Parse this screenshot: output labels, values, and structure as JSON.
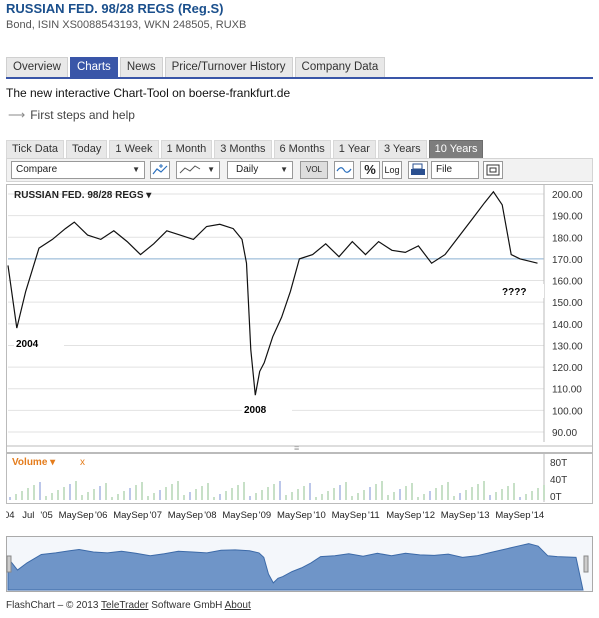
{
  "header": {
    "title": "RUSSIAN FED. 98/28 REGS (Reg.S)",
    "subtitle": "Bond, ISIN XS0088543193, WKN 248505, RUXB"
  },
  "nav_tabs": [
    "Overview",
    "Charts",
    "News",
    "Price/Turnover History",
    "Company Data"
  ],
  "intro_text": "The new interactive Chart-Tool on boerse-frankfurt.de",
  "help_link": "First steps and help",
  "range_tabs": [
    "Tick Data",
    "Today",
    "1 Week",
    "1 Month",
    "3 Months",
    "6 Months",
    "1 Year",
    "3 Years",
    "10 Years"
  ],
  "toolbar": {
    "compare_label": "Compare",
    "interval_label": "Daily",
    "vol_label": "VOL",
    "percent_label": "%",
    "log_label": "Log",
    "file_label": "File"
  },
  "chart_data": {
    "type": "line",
    "title": "RUSSIAN FED. 98/28 REGS",
    "ylim": [
      90,
      200
    ],
    "y_ticks": [
      "200.00",
      "190.00",
      "180.00",
      "170.00",
      "160.00",
      "150.00",
      "140.00",
      "130.00",
      "120.00",
      "110.00",
      "100.00",
      "90.00"
    ],
    "x_ticks": [
      "04",
      "Jul",
      "'05",
      "May",
      "Sep",
      "'06",
      "May",
      "Sep",
      "'07",
      "May",
      "Sep",
      "'08",
      "May",
      "Sep",
      "'09",
      "May",
      "Sep",
      "'10",
      "May",
      "Sep",
      "'11",
      "May",
      "Sep",
      "'12",
      "May",
      "Sep",
      "'13",
      "May",
      "Sep",
      "'14"
    ],
    "annotations": [
      "2004",
      "2008",
      "????"
    ],
    "reference_line": 170,
    "series": [
      {
        "x": [
          "2004-03",
          "2004-05",
          "2004-07",
          "2004-10",
          "2005-01",
          "2005-04",
          "2005-06",
          "2005-09",
          "2005-12",
          "2006-03",
          "2006-06",
          "2006-09",
          "2006-12",
          "2007-03",
          "2007-06",
          "2007-09",
          "2007-12",
          "2008-03",
          "2008-06",
          "2008-08",
          "2008-09",
          "2008-10",
          "2008-11",
          "2008-12",
          "2009-01",
          "2009-03",
          "2009-05",
          "2009-07",
          "2009-09",
          "2009-12",
          "2010-03",
          "2010-06",
          "2010-09",
          "2010-12",
          "2011-03",
          "2011-06",
          "2011-09",
          "2011-12",
          "2012-03",
          "2012-06",
          "2012-09",
          "2012-12",
          "2013-03",
          "2013-05",
          "2013-07",
          "2013-09",
          "2013-11",
          "2014-01",
          "2014-03"
        ],
        "values": [
          167,
          138,
          155,
          175,
          179,
          184,
          187,
          181,
          179,
          183,
          178,
          172,
          177,
          183,
          181,
          179,
          185,
          186,
          184,
          179,
          168,
          128,
          107,
          118,
          122,
          134,
          143,
          155,
          170,
          172,
          177,
          171,
          178,
          172,
          178,
          174,
          173,
          176,
          168,
          172,
          180,
          188,
          196,
          201,
          195,
          172,
          170,
          169,
          168
        ]
      }
    ],
    "volume": {
      "label": "Volume",
      "y_ticks": [
        "80T",
        "40T",
        "0T"
      ]
    }
  },
  "footer": {
    "prefix": "FlashChart – © 2013",
    "company": "TeleTrader",
    "mid": "Software GmbH",
    "about": "About"
  }
}
